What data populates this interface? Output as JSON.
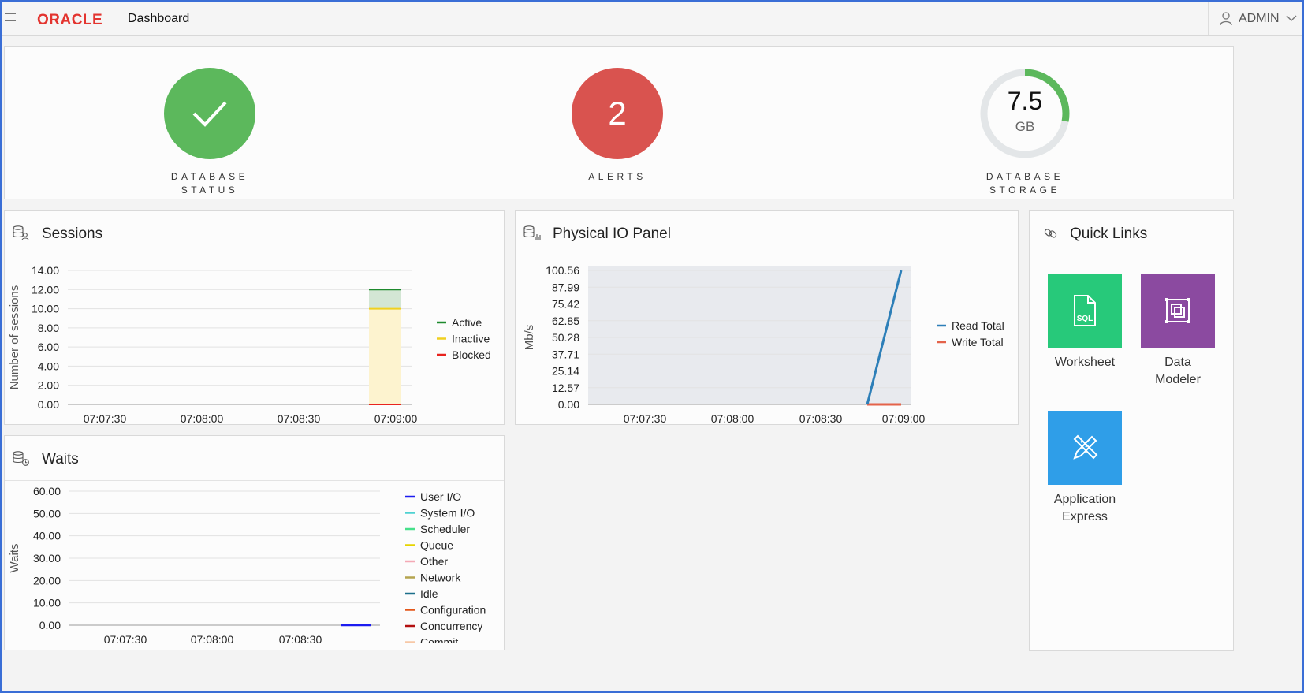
{
  "header": {
    "brand": "ORACLE",
    "title": "Dashboard",
    "user": "ADMIN"
  },
  "status": {
    "db_status": {
      "label_line1": "DATABASE",
      "label_line2": "STATUS",
      "state": "ok",
      "color": "#5cb85c"
    },
    "alerts": {
      "count": "2",
      "label": "ALERTS",
      "color": "#d9534f"
    },
    "storage": {
      "value": "7.5",
      "unit": "GB",
      "label_line1": "DATABASE",
      "label_line2": "STORAGE",
      "fill_fraction": 0.28,
      "color": "#5cb85c",
      "track_color": "#e3e6e8"
    }
  },
  "sessions": {
    "title": "Sessions",
    "chart_data": {
      "type": "area",
      "ylabel": "Number of sessions",
      "y_ticks": [
        "14.00",
        "12.00",
        "10.00",
        "8.00",
        "6.00",
        "4.00",
        "2.00",
        "0.00"
      ],
      "x_ticks": [
        "07:07:30",
        "07:08:00",
        "07:08:30",
        "07:09:00"
      ],
      "ylim": [
        0,
        14
      ],
      "series": [
        {
          "name": "Active",
          "color": "#1e8a2e",
          "values": [
            2
          ]
        },
        {
          "name": "Inactive",
          "color": "#f0d020",
          "values": [
            10
          ]
        },
        {
          "name": "Blocked",
          "color": "#e8231e",
          "values": [
            0
          ]
        }
      ],
      "legend": "right"
    }
  },
  "physical_io": {
    "title": "Physical IO Panel",
    "chart_data": {
      "type": "line",
      "ylabel": "Mb/s",
      "y_ticks": [
        "100.56",
        "87.99",
        "75.42",
        "62.85",
        "50.28",
        "37.71",
        "25.14",
        "12.57",
        "0.00"
      ],
      "x_ticks": [
        "07:07:30",
        "07:08:00",
        "07:08:30",
        "07:09:00"
      ],
      "ylim": [
        0,
        100.56
      ],
      "series": [
        {
          "name": "Read Total",
          "color": "#2d7fb8",
          "values": [
            0,
            100.56
          ]
        },
        {
          "name": "Write Total",
          "color": "#e4634a",
          "values": [
            0,
            0
          ]
        }
      ],
      "legend": "right"
    }
  },
  "waits": {
    "title": "Waits",
    "chart_data": {
      "type": "line",
      "ylabel": "Waits",
      "y_ticks": [
        "60.00",
        "50.00",
        "40.00",
        "30.00",
        "20.00",
        "10.00",
        "0.00"
      ],
      "x_ticks": [
        "07:07:30",
        "07:08:00",
        "07:08:30"
      ],
      "ylim": [
        0,
        60
      ],
      "series": [
        {
          "name": "User I/O",
          "color": "#1c1cf0",
          "values": [
            0,
            0
          ]
        },
        {
          "name": "System I/O",
          "color": "#4fd2d2",
          "values": [
            0,
            0
          ]
        },
        {
          "name": "Scheduler",
          "color": "#47e08a",
          "values": [
            0,
            0
          ]
        },
        {
          "name": "Queue",
          "color": "#e6d400",
          "values": [
            0,
            0
          ]
        },
        {
          "name": "Other",
          "color": "#f4a9b5",
          "values": [
            0,
            0
          ]
        },
        {
          "name": "Network",
          "color": "#b5a44f",
          "values": [
            0,
            0
          ]
        },
        {
          "name": "Idle",
          "color": "#1b6f8a",
          "values": [
            0,
            0
          ]
        },
        {
          "name": "Configuration",
          "color": "#e4571a",
          "values": [
            0,
            0
          ]
        },
        {
          "name": "Concurrency",
          "color": "#b30f0f",
          "values": [
            0,
            0
          ]
        },
        {
          "name": "Commit",
          "color": "#f7c8a6",
          "values": [
            0,
            0
          ]
        }
      ],
      "legend": "right"
    }
  },
  "quick_links": {
    "title": "Quick Links",
    "items": [
      {
        "line1": "Worksheet",
        "line2": "",
        "color": "#27c97a",
        "icon": "sql-file-icon",
        "icon_text": "SQL"
      },
      {
        "line1": "Data",
        "line2": "Modeler",
        "color": "#8b4aa0",
        "icon": "data-modeler-icon"
      },
      {
        "line1": "Application",
        "line2": "Express",
        "color": "#2f9ee8",
        "icon": "pencil-ruler-icon"
      }
    ]
  }
}
